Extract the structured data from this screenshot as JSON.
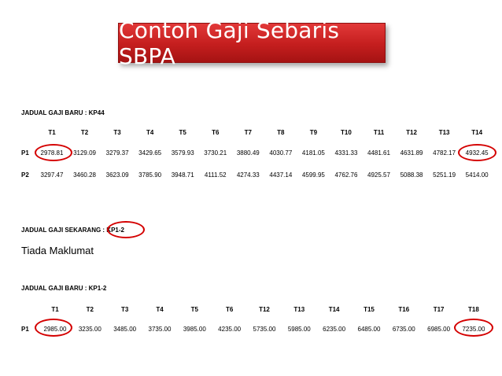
{
  "slide": {
    "title": "Contoh Gaji Sebaris SBPA"
  },
  "section1": {
    "title": "JADUAL GAJI BARU : KP44",
    "headers": [
      "T1",
      "T2",
      "T3",
      "T4",
      "T5",
      "T6",
      "T7",
      "T8",
      "T9",
      "T10",
      "T11",
      "T12",
      "T13",
      "T14"
    ],
    "rows": [
      {
        "label": "P1",
        "values": [
          "2978.81",
          "3129.09",
          "3279.37",
          "3429.65",
          "3579.93",
          "3730.21",
          "3880.49",
          "4030.77",
          "4181.05",
          "4331.33",
          "4481.61",
          "4631.89",
          "4782.17",
          "4932.45"
        ]
      },
      {
        "label": "P2",
        "values": [
          "3297.47",
          "3460.28",
          "3623.09",
          "3785.90",
          "3948.71",
          "4111.52",
          "4274.33",
          "4437.14",
          "4599.95",
          "4762.76",
          "4925.57",
          "5088.38",
          "5251.19",
          "5414.00"
        ]
      }
    ]
  },
  "section2": {
    "title": "JADUAL GAJI SEKARANG : KP1-2",
    "note": "Tiada Maklumat"
  },
  "section3": {
    "title": "JADUAL GAJI BARU : KP1-2",
    "headers": [
      "T1",
      "T2",
      "T3",
      "T4",
      "T5",
      "T6",
      "T12",
      "T13",
      "T14",
      "T15",
      "T16",
      "T17",
      "T18"
    ],
    "rows": [
      {
        "label": "P1",
        "values": [
          "2985.00",
          "3235.00",
          "3485.00",
          "3735.00",
          "3985.00",
          "4235.00",
          "5735.00",
          "5985.00",
          "6235.00",
          "6485.00",
          "6735.00",
          "6985.00",
          "7235.00"
        ]
      }
    ]
  },
  "highlight_color": "#d40000"
}
